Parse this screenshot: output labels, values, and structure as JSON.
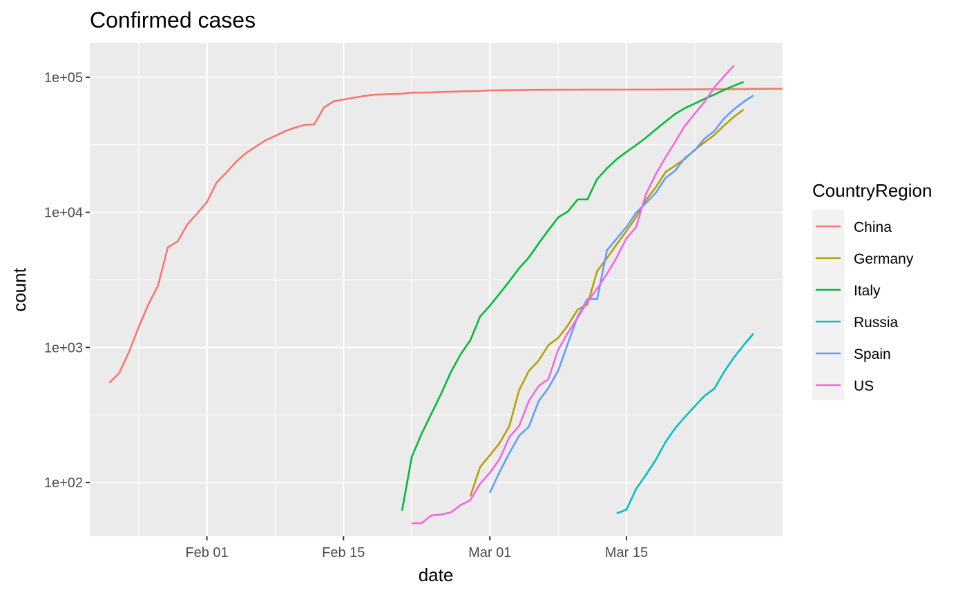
{
  "chart_data": {
    "type": "line",
    "title": "Confirmed cases",
    "xlabel": "date",
    "ylabel": "count",
    "y_scale": "log10",
    "ylim": [
      40,
      180000
    ],
    "xlim": [
      "2020-01-20",
      "2020-03-31"
    ],
    "x_ticks": [
      {
        "date": "2020-02-01",
        "label": "Feb 01"
      },
      {
        "date": "2020-02-15",
        "label": "Feb 15"
      },
      {
        "date": "2020-03-01",
        "label": "Mar 01"
      },
      {
        "date": "2020-03-15",
        "label": "Mar 15"
      }
    ],
    "y_ticks": [
      {
        "value": 100,
        "label": "1e+02"
      },
      {
        "value": 1000,
        "label": "1e+03"
      },
      {
        "value": 10000,
        "label": "1e+04"
      },
      {
        "value": 100000,
        "label": "1e+05"
      }
    ],
    "grid": true,
    "panel_background": "#ebebeb",
    "legend": {
      "title": "CountryRegion",
      "position": "right"
    },
    "series": [
      {
        "name": "China",
        "color": "#F8766D",
        "start": "2020-01-22",
        "values": [
          548,
          643,
          920,
          1406,
          2075,
          2877,
          5509,
          6087,
          8141,
          9802,
          11891,
          16630,
          19716,
          23707,
          27440,
          30587,
          34110,
          36814,
          39829,
          42354,
          44386,
          44759,
          59895,
          66358,
          68413,
          70513,
          72434,
          74211,
          74619,
          75077,
          75550,
          77001,
          77022,
          77241,
          77754,
          78166,
          78600,
          78928,
          79356,
          79932,
          80136,
          80261,
          80386,
          80537,
          80690,
          80770,
          80823,
          80860,
          80887,
          80921,
          80932,
          80945,
          80977,
          81003,
          81033,
          81058,
          81102,
          81156,
          81250,
          81305,
          81435,
          81498,
          81591,
          81661,
          81782,
          81897,
          81999,
          82122,
          82198,
          82279
        ]
      },
      {
        "name": "Germany",
        "color": "#B79F00",
        "start": "2020-02-28",
        "values": [
          79,
          130,
          159,
          196,
          262,
          482,
          670,
          799,
          1040,
          1176,
          1457,
          1908,
          2078,
          3675,
          4585,
          5795,
          7272,
          9257,
          12327,
          15320,
          19848,
          22213,
          24873,
          29056,
          32986,
          37323,
          43938,
          50871,
          57695
        ]
      },
      {
        "name": "Italy",
        "color": "#00BA38",
        "start": "2020-02-21",
        "values": [
          62,
          155,
          229,
          322,
          453,
          655,
          888,
          1128,
          1694,
          2036,
          2502,
          3089,
          3858,
          4636,
          5883,
          7375,
          9172,
          10149,
          12462,
          12462,
          17660,
          21157,
          24747,
          27980,
          31506,
          35713,
          41035,
          47021,
          53578,
          59138,
          63927,
          69176,
          74386,
          80589,
          86498,
          92472
        ]
      },
      {
        "name": "Russia",
        "color": "#00BFC4",
        "start": "2020-03-14",
        "values": [
          59,
          63,
          90,
          114,
          147,
          199,
          253,
          306,
          367,
          438,
          495,
          658,
          840,
          1036,
          1264
        ]
      },
      {
        "name": "Spain",
        "color": "#619CFF",
        "start": "2020-03-01",
        "values": [
          84,
          120,
          165,
          222,
          259,
          400,
          500,
          673,
          1073,
          1695,
          2277,
          2277,
          5232,
          6391,
          7798,
          9942,
          11748,
          13910,
          17963,
          20410,
          25374,
          28768,
          35136,
          39885,
          49515,
          57786,
          65719,
          73235
        ]
      },
      {
        "name": "US",
        "color": "#F564E3",
        "start": "2020-02-22",
        "values": [
          50,
          50,
          57,
          58,
          60,
          68,
          74,
          98,
          118,
          149,
          217,
          262,
          402,
          518,
          583,
          959,
          1281,
          1663,
          2179,
          2727,
          3499,
          4632,
          6421,
          7783,
          13677,
          19100,
          25489,
          33276,
          43847,
          53740,
          65778,
          83836,
          101657,
          121478
        ]
      }
    ]
  }
}
